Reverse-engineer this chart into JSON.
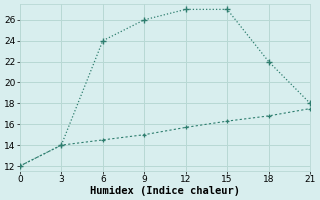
{
  "xlabel": "Humidex (Indice chaleur)",
  "line1_x": [
    0,
    3,
    6,
    9,
    12,
    15,
    18,
    21
  ],
  "line1_y": [
    12,
    14,
    24,
    26,
    27,
    27,
    22,
    18
  ],
  "line2_x": [
    0,
    3,
    6,
    9,
    12,
    15,
    18,
    21
  ],
  "line2_y": [
    12,
    14,
    14.5,
    15.0,
    15.7,
    16.3,
    16.8,
    17.5
  ],
  "line_color": "#2d7d6e",
  "bg_color": "#d8eeee",
  "grid_color": "#b8d8d4",
  "xlim": [
    0,
    21
  ],
  "ylim": [
    11.5,
    27.5
  ],
  "xticks": [
    0,
    3,
    6,
    9,
    12,
    15,
    18,
    21
  ],
  "yticks": [
    12,
    14,
    16,
    18,
    20,
    22,
    24,
    26
  ],
  "xlabel_fontsize": 7.5,
  "tick_fontsize": 6.5
}
